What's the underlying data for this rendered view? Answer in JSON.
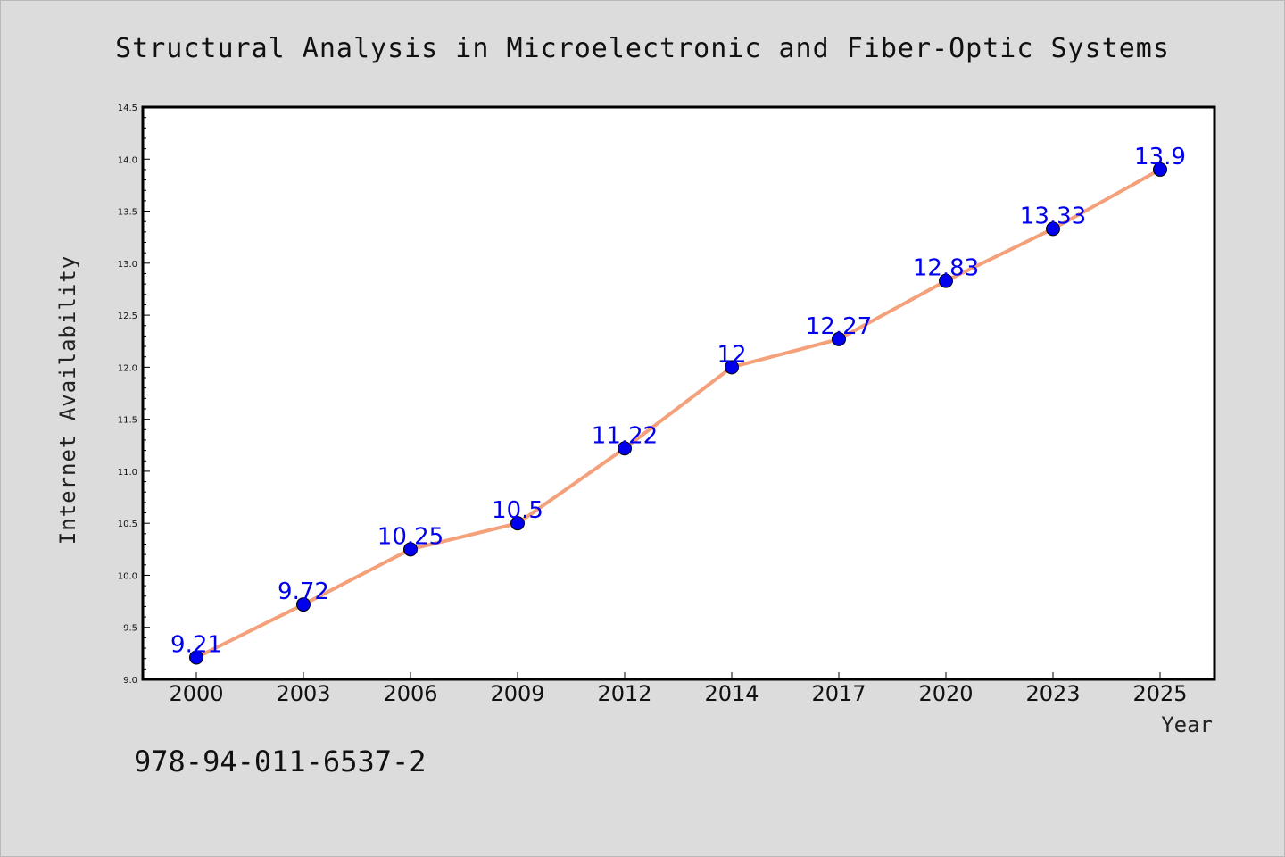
{
  "chart_data": {
    "type": "line",
    "title": "Structural Analysis in Microelectronic and Fiber-Optic Systems",
    "xlabel": "Year",
    "ylabel": "Internet Availability",
    "categories": [
      "2000",
      "2003",
      "2006",
      "2009",
      "2012",
      "2014",
      "2017",
      "2020",
      "2023",
      "2025"
    ],
    "series": [
      {
        "values": [
          9.21,
          9.72,
          10.25,
          10.5,
          11.22,
          12,
          12.27,
          12.83,
          13.33,
          13.9
        ]
      }
    ],
    "data_labels": [
      "9.21",
      "9.72",
      "10.25",
      "10.5",
      "11.22",
      "12",
      "12.27",
      "12.83",
      "13.33",
      "13.9"
    ],
    "ylim": [
      9.0,
      14.5
    ],
    "yticks": [
      "9.0",
      "9.5",
      "10.0",
      "10.5",
      "11.0",
      "11.5",
      "12.0",
      "12.5",
      "13.0",
      "13.5",
      "14.0",
      "14.5"
    ],
    "grid": false,
    "line_color": "#f4a07a",
    "marker_color": "#0000ee"
  },
  "footer_text": "978-94-011-6537-2"
}
